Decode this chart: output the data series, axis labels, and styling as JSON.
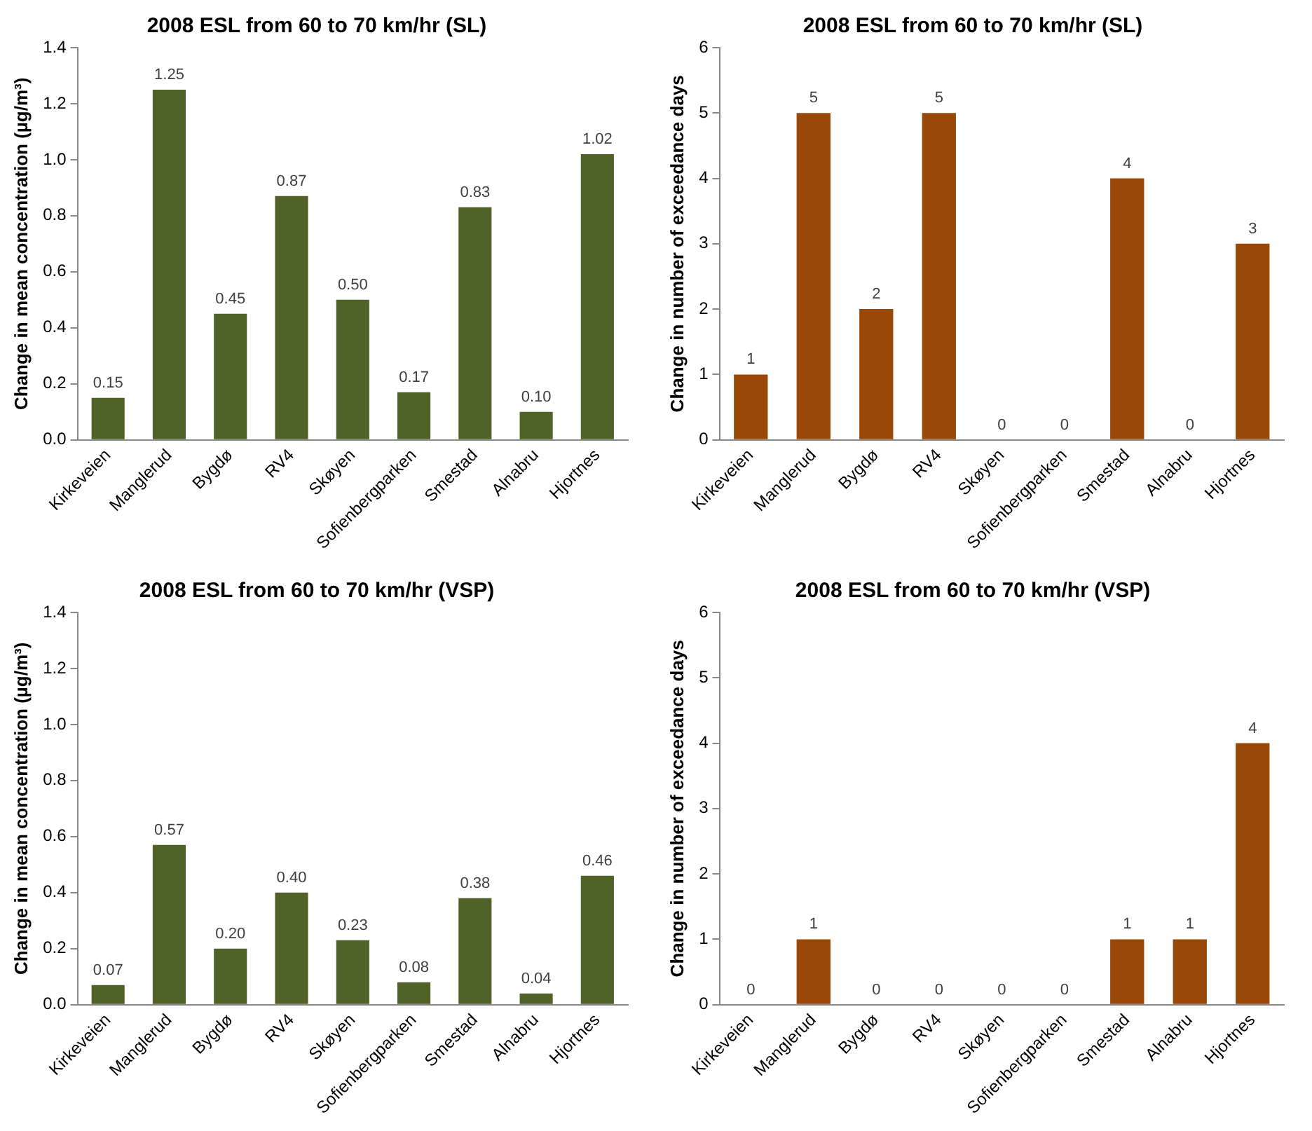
{
  "chart_data": [
    {
      "type": "bar",
      "title": "2008 ESL from 60 to 70 km/hr (SL)",
      "ylabel": "Change in mean concentration (µg/m³)",
      "categories": [
        "Kirkeveien",
        "Manglerud",
        "Bygdø",
        "RV4",
        "Skøyen",
        "Sofienbergparken",
        "Smestad",
        "Alnabru",
        "Hjortnes"
      ],
      "values": [
        0.15,
        1.25,
        0.45,
        0.87,
        0.5,
        0.17,
        0.83,
        0.1,
        1.02
      ],
      "value_labels": [
        "0.15",
        "1.25",
        "0.45",
        "0.87",
        "0.50",
        "0.17",
        "0.83",
        "0.10",
        "1.02"
      ],
      "color": "#4f6228",
      "ylim": [
        0,
        1.4
      ],
      "yticks": [
        {
          "value": 0,
          "label": "0.0"
        },
        {
          "value": 0.2,
          "label": "0.2"
        },
        {
          "value": 0.4,
          "label": "0.4"
        },
        {
          "value": 0.6,
          "label": "0.6"
        },
        {
          "value": 0.8,
          "label": "0.8"
        },
        {
          "value": 1,
          "label": "1.0"
        },
        {
          "value": 1.2,
          "label": "1.2"
        },
        {
          "value": 1.4,
          "label": "1.4"
        }
      ],
      "grid": false,
      "legend": false
    },
    {
      "type": "bar",
      "title": "2008 ESL from 60 to 70 km/hr (SL)",
      "ylabel": "Change in number of exceedance days",
      "categories": [
        "Kirkeveien",
        "Manglerud",
        "Bygdø",
        "RV4",
        "Skøyen",
        "Sofienbergparken",
        "Smestad",
        "Alnabru",
        "Hjortnes"
      ],
      "values": [
        1,
        5,
        2,
        5,
        0,
        0,
        4,
        0,
        3
      ],
      "data_labels": true,
      "color": "#984807",
      "ylim": [
        0,
        6
      ],
      "yticks": [
        0,
        1,
        2,
        3,
        4,
        5,
        6
      ],
      "grid": false,
      "legend": false
    },
    {
      "type": "bar",
      "title": "2008 ESL from 60 to 70 km/hr (VSP)",
      "ylabel": "Change in mean concentration (µg/m³)",
      "categories": [
        "Kirkeveien",
        "Manglerud",
        "Bygdø",
        "RV4",
        "Skøyen",
        "Sofienbergparken",
        "Smestad",
        "Alnabru",
        "Hjortnes"
      ],
      "values": [
        0.07,
        0.57,
        0.2,
        0.4,
        0.23,
        0.08,
        0.38,
        0.04,
        0.46
      ],
      "value_labels": [
        "0.07",
        "0.57",
        "0.20",
        "0.40",
        "0.23",
        "0.08",
        "0.38",
        "0.04",
        "0.46"
      ],
      "color": "#4f6228",
      "ylim": [
        0,
        1.4
      ],
      "yticks": [
        {
          "value": 0,
          "label": "0.0"
        },
        {
          "value": 0.2,
          "label": "0.2"
        },
        {
          "value": 0.4,
          "label": "0.4"
        },
        {
          "value": 0.6,
          "label": "0.6"
        },
        {
          "value": 0.8,
          "label": "0.8"
        },
        {
          "value": 1,
          "label": "1.0"
        },
        {
          "value": 1.2,
          "label": "1.2"
        },
        {
          "value": 1.4,
          "label": "1.4"
        }
      ],
      "grid": false,
      "legend": false
    },
    {
      "type": "bar",
      "title": "2008 ESL from 60 to 70 km/hr (VSP)",
      "ylabel": "Change in number of exceedance days",
      "categories": [
        "Kirkeveien",
        "Manglerud",
        "Bygdø",
        "RV4",
        "Skøyen",
        "Sofienbergparken",
        "Smestad",
        "Alnabru",
        "Hjortnes"
      ],
      "values": [
        0,
        1,
        0,
        0,
        0,
        0,
        1,
        1,
        4
      ],
      "data_labels": true,
      "color": "#984807",
      "ylim": [
        0,
        6
      ],
      "yticks": [
        0,
        1,
        2,
        3,
        4,
        5,
        6
      ],
      "grid": false,
      "legend": false
    }
  ]
}
